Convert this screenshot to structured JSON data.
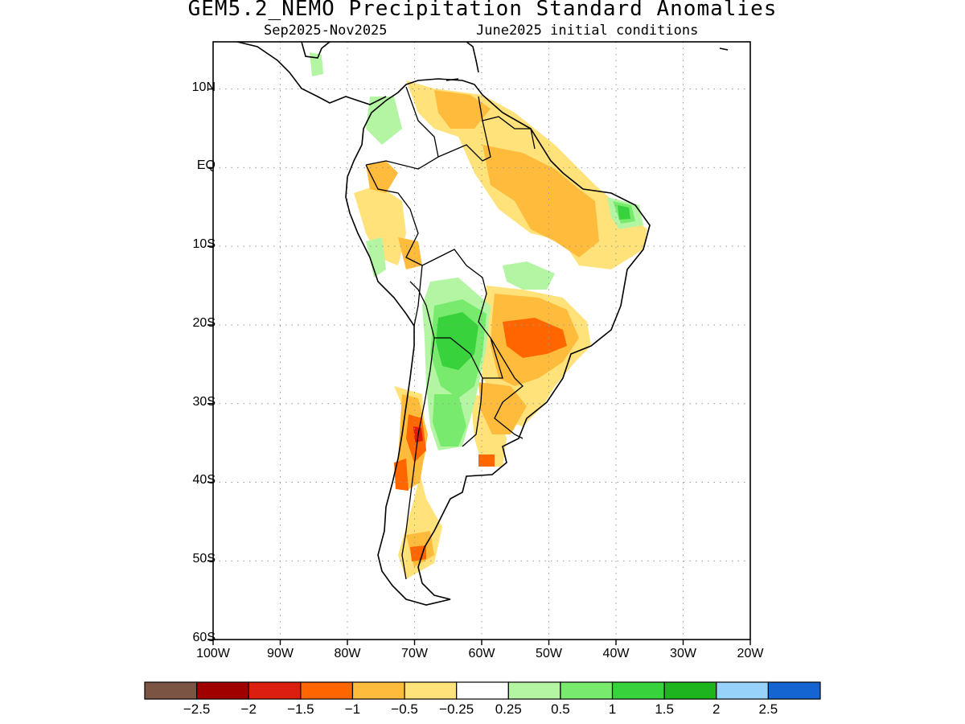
{
  "title": "GEM5.2_NEMO Precipitation Standard Anomalies",
  "subtitle_period": "Sep2025-Nov2025",
  "subtitle_init": "June2025 initial conditions",
  "map": {
    "lat_ticks": [
      {
        "value": 10,
        "label": "10N"
      },
      {
        "value": 0,
        "label": "EQ"
      },
      {
        "value": -10,
        "label": "10S"
      },
      {
        "value": -20,
        "label": "20S"
      },
      {
        "value": -30,
        "label": "30S"
      },
      {
        "value": -40,
        "label": "40S"
      },
      {
        "value": -50,
        "label": "50S"
      },
      {
        "value": -60,
        "label": "60S"
      }
    ],
    "lon_ticks": [
      {
        "value": -100,
        "label": "100W"
      },
      {
        "value": -90,
        "label": "90W"
      },
      {
        "value": -80,
        "label": "80W"
      },
      {
        "value": -70,
        "label": "70W"
      },
      {
        "value": -60,
        "label": "60W"
      },
      {
        "value": -50,
        "label": "50W"
      },
      {
        "value": -40,
        "label": "40W"
      },
      {
        "value": -30,
        "label": "30W"
      },
      {
        "value": -20,
        "label": "20W"
      }
    ],
    "lon_range": [
      -100,
      -20
    ],
    "lat_range": [
      -60,
      16
    ],
    "grid": true
  },
  "colorbar": {
    "colors": [
      "#7b5444",
      "#a00000",
      "#dc1e10",
      "#ff6600",
      "#ffbb3c",
      "#ffe27a",
      "#ffffff",
      "#b4f5a4",
      "#78eb6e",
      "#37d23c",
      "#1eb41e",
      "#96d2fa",
      "#1464d2"
    ],
    "labels": [
      "-2.5",
      "-2",
      "-1.5",
      "-1",
      "-0.5",
      "-0.25",
      "0.25",
      "0.5",
      "1",
      "1.5",
      "2",
      "2.5"
    ]
  }
}
